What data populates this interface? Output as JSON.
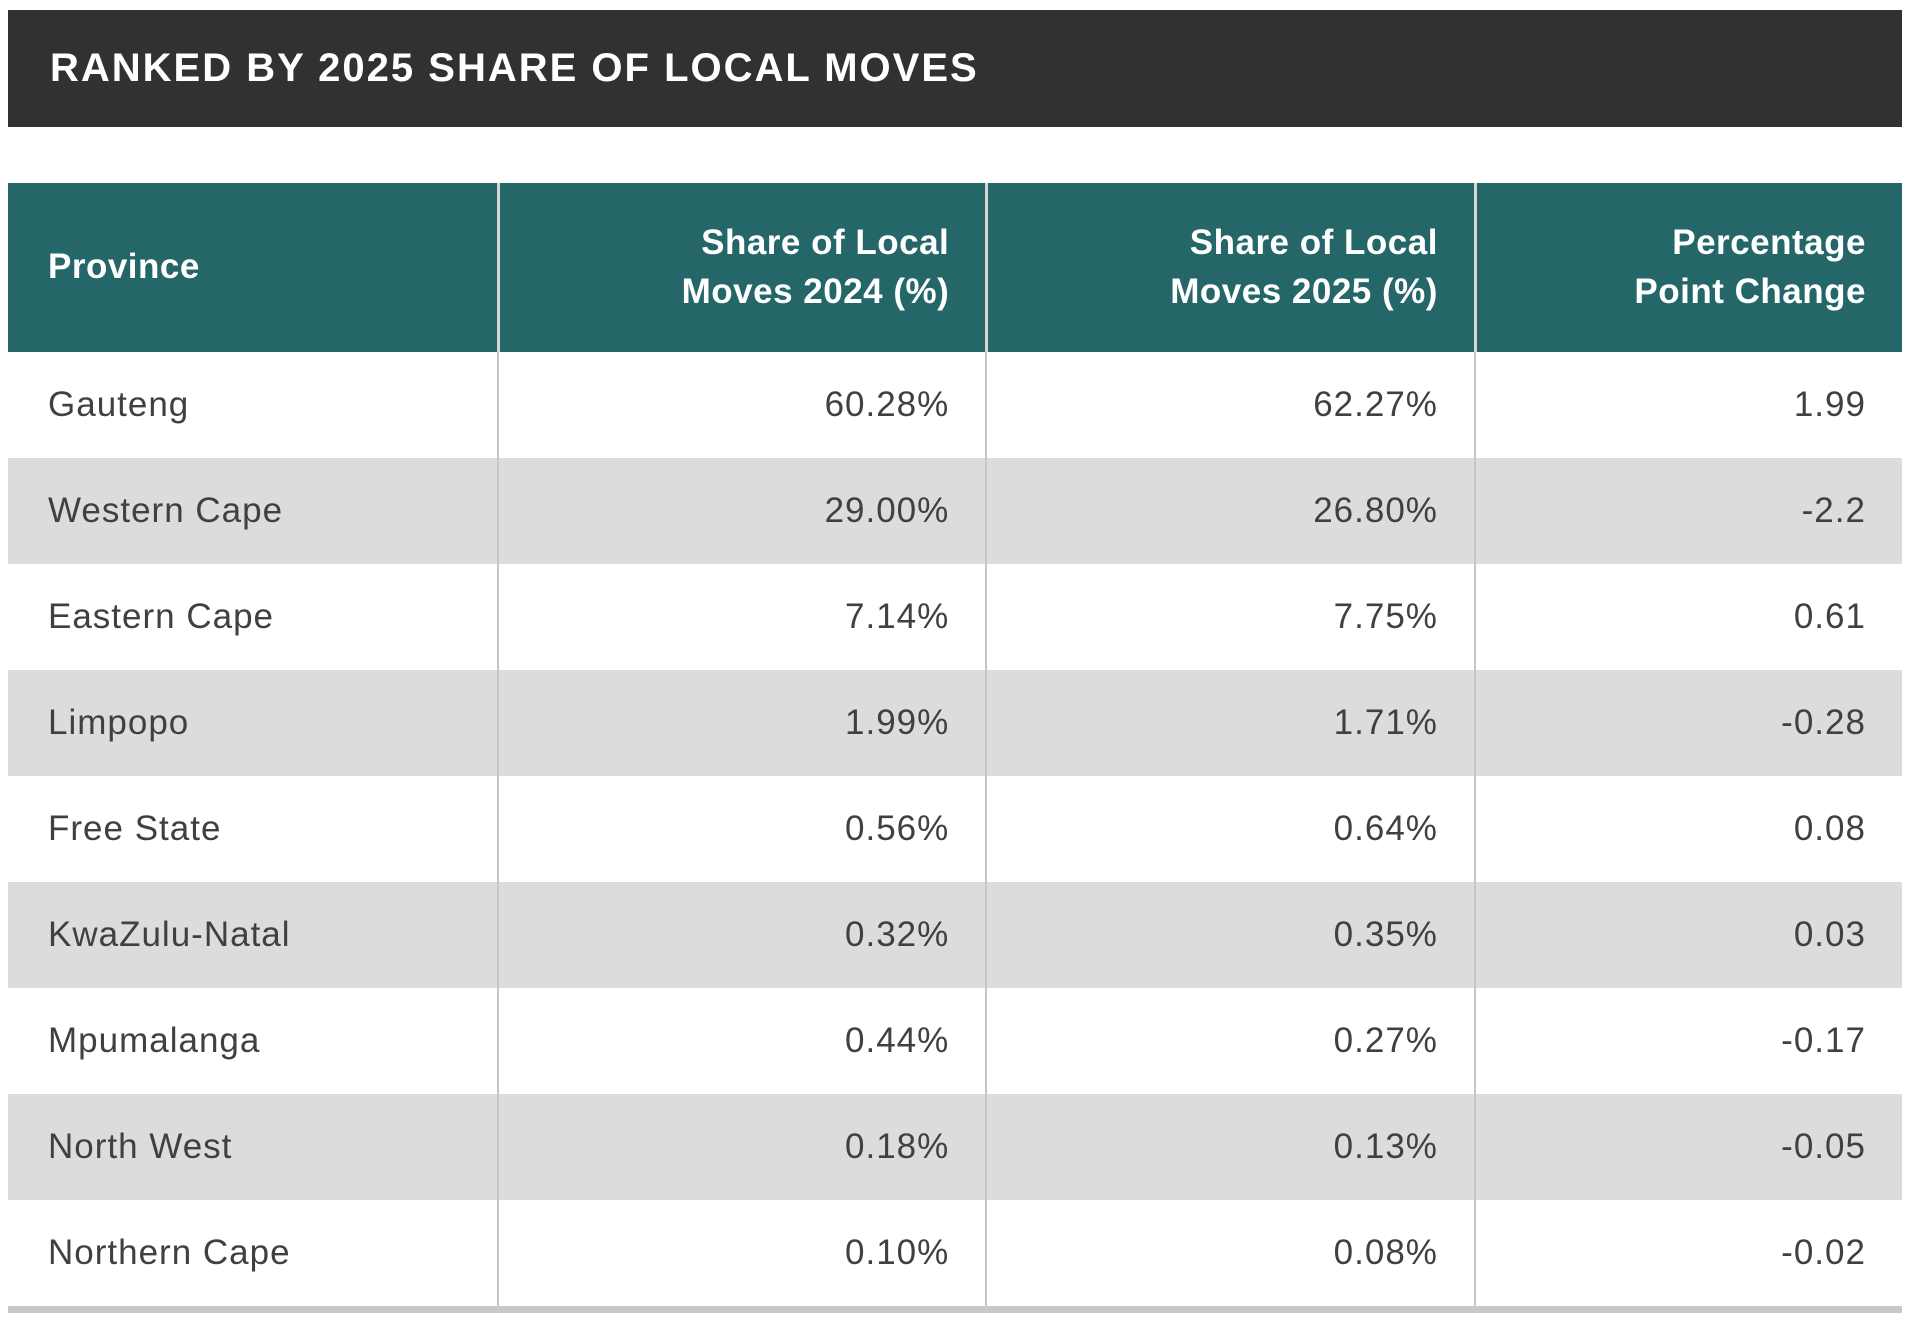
{
  "colors": {
    "title_bar_bg": "#323033",
    "header_bg": "#256769",
    "alt_row_bg": "#dcdcde",
    "body_text": "#404043",
    "divider_body": "#c6c6c8",
    "divider_header": "#d6d6d6",
    "bottom_bar": "#c8c8ca"
  },
  "title_bar": {
    "text": "RANKED BY 2025 SHARE OF LOCAL MOVES"
  },
  "table": {
    "columns": [
      {
        "label": "Province",
        "align": "left"
      },
      {
        "label": "Share of Local\nMoves 2024 (%)",
        "align": "right"
      },
      {
        "label": "Share of Local\nMoves 2025 (%)",
        "align": "right"
      },
      {
        "label": "Percentage\nPoint Change",
        "align": "right"
      }
    ],
    "rows": [
      [
        "Gauteng",
        "60.28%",
        "62.27%",
        "1.99"
      ],
      [
        "Western Cape",
        "29.00%",
        "26.80%",
        "-2.2"
      ],
      [
        "Eastern Cape",
        "7.14%",
        "7.75%",
        "0.61"
      ],
      [
        "Limpopo",
        "1.99%",
        "1.71%",
        "-0.28"
      ],
      [
        "Free State",
        "0.56%",
        "0.64%",
        "0.08"
      ],
      [
        "KwaZulu-Natal",
        "0.32%",
        "0.35%",
        "0.03"
      ],
      [
        "Mpumalanga",
        "0.44%",
        "0.27%",
        "-0.17"
      ],
      [
        "North West",
        "0.18%",
        "0.13%",
        "-0.05"
      ],
      [
        "Northern Cape",
        "0.10%",
        "0.08%",
        "-0.02"
      ]
    ]
  },
  "chart_data": {
    "type": "table",
    "title": "RANKED BY 2025 SHARE OF LOCAL MOVES",
    "columns": [
      "Province",
      "Share of Local Moves 2024 (%)",
      "Share of Local Moves 2025 (%)",
      "Percentage Point Change"
    ],
    "rows": [
      {
        "province": "Gauteng",
        "share_2024_pct": 60.28,
        "share_2025_pct": 62.27,
        "pp_change": 1.99
      },
      {
        "province": "Western Cape",
        "share_2024_pct": 29.0,
        "share_2025_pct": 26.8,
        "pp_change": -2.2
      },
      {
        "province": "Eastern Cape",
        "share_2024_pct": 7.14,
        "share_2025_pct": 7.75,
        "pp_change": 0.61
      },
      {
        "province": "Limpopo",
        "share_2024_pct": 1.99,
        "share_2025_pct": 1.71,
        "pp_change": -0.28
      },
      {
        "province": "Free State",
        "share_2024_pct": 0.56,
        "share_2025_pct": 0.64,
        "pp_change": 0.08
      },
      {
        "province": "KwaZulu-Natal",
        "share_2024_pct": 0.32,
        "share_2025_pct": 0.35,
        "pp_change": 0.03
      },
      {
        "province": "Mpumalanga",
        "share_2024_pct": 0.44,
        "share_2025_pct": 0.27,
        "pp_change": -0.17
      },
      {
        "province": "North West",
        "share_2024_pct": 0.18,
        "share_2025_pct": 0.13,
        "pp_change": -0.05
      },
      {
        "province": "Northern Cape",
        "share_2024_pct": 0.1,
        "share_2025_pct": 0.08,
        "pp_change": -0.02
      }
    ],
    "layout": {
      "sorted_by": "share_2025_pct descending",
      "row_striping": "white / light-gray alternating",
      "header_color": "#256769"
    }
  }
}
